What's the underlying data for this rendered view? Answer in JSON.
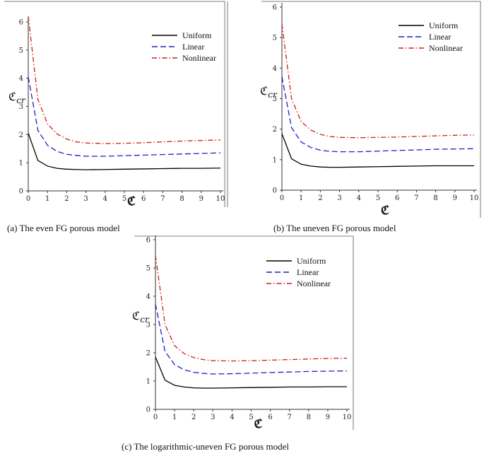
{
  "chart_data": [
    {
      "type": "line",
      "panel": "a",
      "caption": "(a)  The even FG porous model",
      "xlabel": "ℭ",
      "ylabel": "ℭ",
      "ylabel_sub": "cr",
      "xlim": [
        0,
        10
      ],
      "ylim": [
        0,
        6
      ],
      "xticks": [
        "0",
        "1",
        "2",
        "3",
        "4",
        "5",
        "6",
        "7",
        "8",
        "9",
        "10"
      ],
      "yticks": [
        "0",
        "1",
        "2",
        "3",
        "4",
        "5",
        "6"
      ],
      "legend_position": "top-right",
      "series": [
        {
          "name": "Uniform",
          "color": "#000000",
          "style": "solid",
          "x": [
            0,
            0.5,
            1,
            1.5,
            2,
            2.5,
            3,
            4,
            5,
            6,
            7,
            8,
            9,
            10
          ],
          "y": [
            2.05,
            1.08,
            0.88,
            0.8,
            0.77,
            0.76,
            0.75,
            0.76,
            0.77,
            0.78,
            0.79,
            0.8,
            0.8,
            0.81
          ]
        },
        {
          "name": "Linear",
          "color": "#1f1fc8",
          "style": "dash",
          "x": [
            0,
            0.5,
            1,
            1.5,
            2,
            2.5,
            3,
            4,
            5,
            6,
            7,
            8,
            9,
            10
          ],
          "y": [
            4.05,
            2.15,
            1.62,
            1.4,
            1.3,
            1.26,
            1.23,
            1.23,
            1.25,
            1.27,
            1.29,
            1.31,
            1.33,
            1.35
          ]
        },
        {
          "name": "Nonlinear",
          "color": "#d41b1b",
          "style": "dashdot",
          "x": [
            0,
            0.5,
            1,
            1.5,
            2,
            2.5,
            3,
            4,
            5,
            6,
            7,
            8,
            9,
            10
          ],
          "y": [
            6.2,
            3.25,
            2.38,
            2.02,
            1.84,
            1.74,
            1.7,
            1.68,
            1.69,
            1.71,
            1.74,
            1.77,
            1.79,
            1.81
          ]
        }
      ]
    },
    {
      "type": "line",
      "panel": "b",
      "caption": "(b)  The uneven FG porous model",
      "xlabel": "ℭ",
      "ylabel": "ℭ",
      "ylabel_sub": "cr",
      "xlim": [
        0,
        10
      ],
      "ylim": [
        0,
        6
      ],
      "xticks": [
        "0",
        "1",
        "2",
        "3",
        "4",
        "5",
        "6",
        "7",
        "8",
        "9",
        "10"
      ],
      "yticks": [
        "0",
        "1",
        "2",
        "3",
        "4",
        "5",
        "6"
      ],
      "legend_position": "top-right",
      "series": [
        {
          "name": "Uniform",
          "color": "#000000",
          "style": "solid",
          "x": [
            0,
            0.5,
            1,
            1.5,
            2,
            2.5,
            3,
            4,
            5,
            6,
            7,
            8,
            9,
            10
          ],
          "y": [
            1.85,
            1.03,
            0.85,
            0.79,
            0.76,
            0.75,
            0.75,
            0.76,
            0.77,
            0.78,
            0.79,
            0.8,
            0.8,
            0.8
          ]
        },
        {
          "name": "Linear",
          "color": "#1f1fc8",
          "style": "dash",
          "x": [
            0,
            0.5,
            1,
            1.5,
            2,
            2.5,
            3,
            4,
            5,
            6,
            7,
            8,
            9,
            10
          ],
          "y": [
            3.72,
            2.05,
            1.58,
            1.4,
            1.31,
            1.27,
            1.26,
            1.26,
            1.28,
            1.3,
            1.32,
            1.34,
            1.35,
            1.36
          ]
        },
        {
          "name": "Nonlinear",
          "color": "#d41b1b",
          "style": "dashdot",
          "x": [
            0,
            0.5,
            1,
            1.5,
            2,
            2.5,
            3,
            4,
            5,
            6,
            7,
            8,
            9,
            10
          ],
          "y": [
            5.45,
            3.0,
            2.25,
            1.97,
            1.83,
            1.76,
            1.73,
            1.72,
            1.73,
            1.74,
            1.76,
            1.78,
            1.8,
            1.81
          ]
        }
      ]
    },
    {
      "type": "line",
      "panel": "c",
      "caption": "(c)  The logarithmic-uneven FG porous model",
      "xlabel": "ℭ",
      "ylabel": "ℭ",
      "ylabel_sub": "cr",
      "xlim": [
        0,
        10
      ],
      "ylim": [
        0,
        6
      ],
      "xticks": [
        "0",
        "1",
        "2",
        "3",
        "4",
        "5",
        "6",
        "7",
        "8",
        "9",
        "10"
      ],
      "yticks": [
        "0",
        "1",
        "2",
        "3",
        "4",
        "5",
        "6"
      ],
      "legend_position": "top-right",
      "series": [
        {
          "name": "Uniform",
          "color": "#000000",
          "style": "solid",
          "x": [
            0,
            0.5,
            1,
            1.5,
            2,
            2.5,
            3,
            4,
            5,
            6,
            7,
            8,
            9,
            10
          ],
          "y": [
            1.85,
            1.03,
            0.85,
            0.79,
            0.76,
            0.75,
            0.75,
            0.76,
            0.77,
            0.78,
            0.79,
            0.79,
            0.8,
            0.8
          ]
        },
        {
          "name": "Linear",
          "color": "#1f1fc8",
          "style": "dash",
          "x": [
            0,
            0.5,
            1,
            1.5,
            2,
            2.5,
            3,
            4,
            5,
            6,
            7,
            8,
            9,
            10
          ],
          "y": [
            3.72,
            2.05,
            1.58,
            1.4,
            1.31,
            1.27,
            1.25,
            1.26,
            1.28,
            1.3,
            1.32,
            1.34,
            1.35,
            1.36
          ]
        },
        {
          "name": "Nonlinear",
          "color": "#d41b1b",
          "style": "dashdot",
          "x": [
            0,
            0.5,
            1,
            1.5,
            2,
            2.5,
            3,
            4,
            5,
            6,
            7,
            8,
            9,
            10
          ],
          "y": [
            5.45,
            3.0,
            2.25,
            1.97,
            1.83,
            1.76,
            1.72,
            1.71,
            1.72,
            1.74,
            1.76,
            1.78,
            1.8,
            1.81
          ]
        }
      ]
    }
  ]
}
